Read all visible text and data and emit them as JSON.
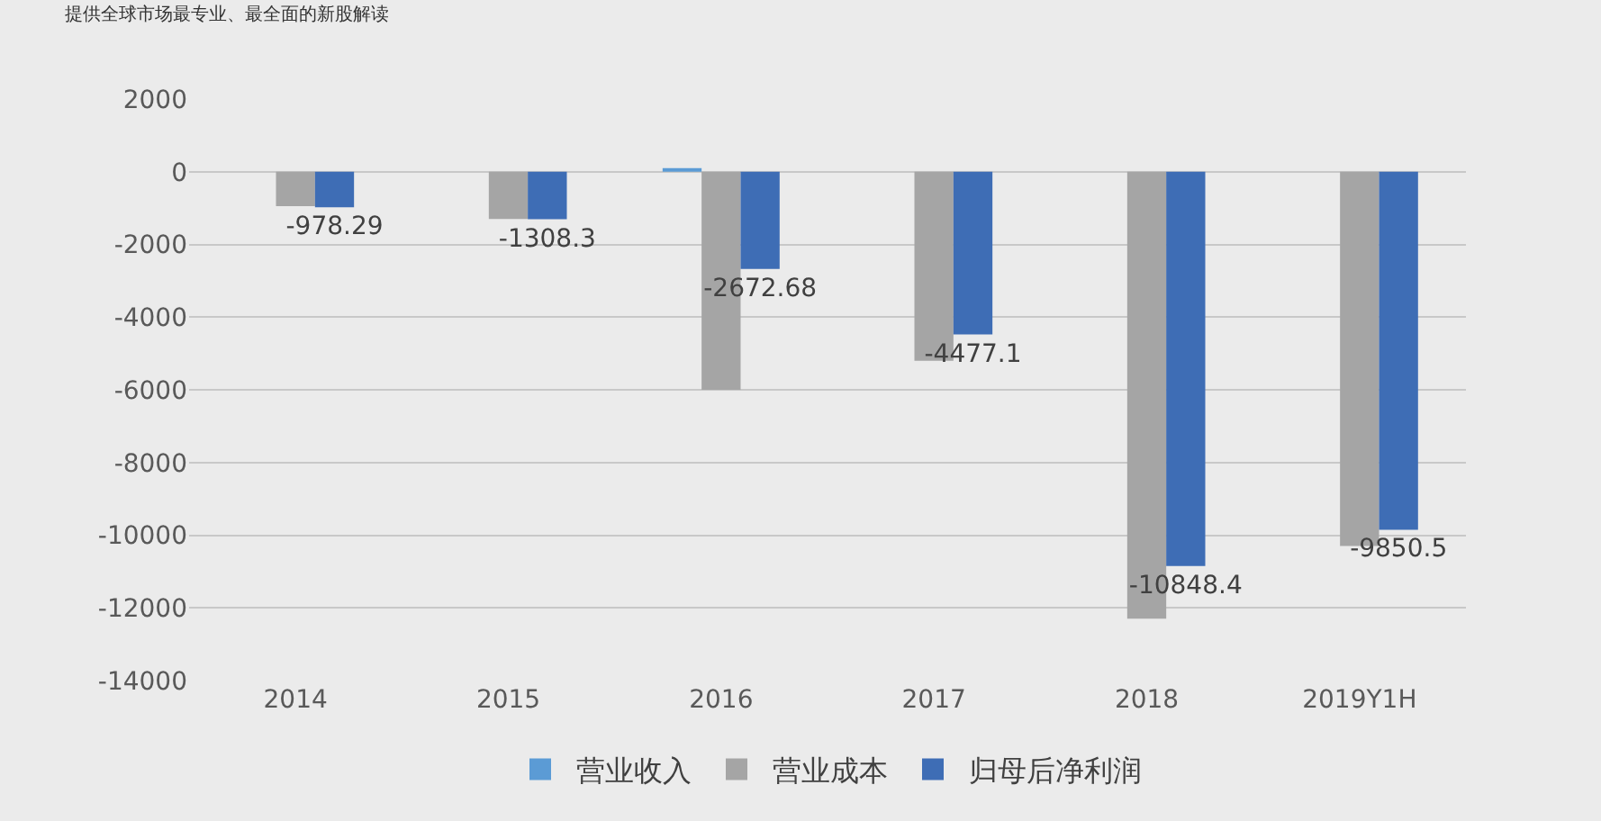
{
  "chart_data": {
    "type": "bar",
    "subtitle": "提供全球市场最专业、最全面的新股解读",
    "categories": [
      "2014",
      "2015",
      "2016",
      "2017",
      "2018",
      "2019Y1H"
    ],
    "series": [
      {
        "name": "营业收入",
        "color": "#5b9bd5",
        "values": [
          0,
          0,
          100,
          0,
          0,
          0
        ]
      },
      {
        "name": "营业成本",
        "color": "#a5a5a5",
        "values": [
          -950,
          -1300,
          -6000,
          -5200,
          -12300,
          -10300
        ]
      },
      {
        "name": "归母后净利润",
        "color": "#3e6db5",
        "values": [
          -978.29,
          -1308.3,
          -2672.68,
          -4477.1,
          -10848.4,
          -9850.5
        ],
        "value_labels": [
          "-978.29",
          "-1308.3",
          "-2672.68",
          "-4477.1",
          "-10848.4",
          "-9850.5"
        ]
      }
    ],
    "ylim": [
      -14000,
      2000
    ],
    "yticks": [
      -14000,
      -12000,
      -10000,
      -8000,
      -6000,
      -4000,
      -2000,
      0,
      2000
    ],
    "grid": "y",
    "legend": "bottom"
  }
}
